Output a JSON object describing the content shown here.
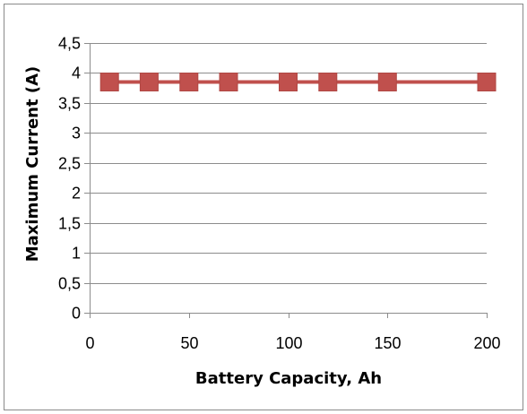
{
  "chart_data": {
    "type": "line",
    "title": "",
    "xlabel": "Battery Capacity, Ah",
    "ylabel": "Maximum Current (A)",
    "xlim": [
      0,
      200
    ],
    "ylim": [
      0,
      4.5
    ],
    "x_ticks": [
      0,
      50,
      100,
      150,
      200
    ],
    "x_tick_labels": [
      "0",
      "50",
      "100",
      "150",
      "200"
    ],
    "y_ticks": [
      0,
      0.5,
      1,
      1.5,
      2,
      2.5,
      3,
      3.5,
      4,
      4.5
    ],
    "y_tick_labels": [
      "0",
      "0,5",
      "1",
      "1,5",
      "2",
      "2,5",
      "3",
      "3,5",
      "4",
      "4,5"
    ],
    "grid": true,
    "legend": "none",
    "series": [
      {
        "color": "#c0504d",
        "marker": "square",
        "x": [
          10,
          30,
          50,
          70,
          100,
          120,
          150,
          200
        ],
        "y": [
          3.85,
          3.85,
          3.85,
          3.85,
          3.85,
          3.85,
          3.85,
          3.85
        ]
      }
    ]
  }
}
